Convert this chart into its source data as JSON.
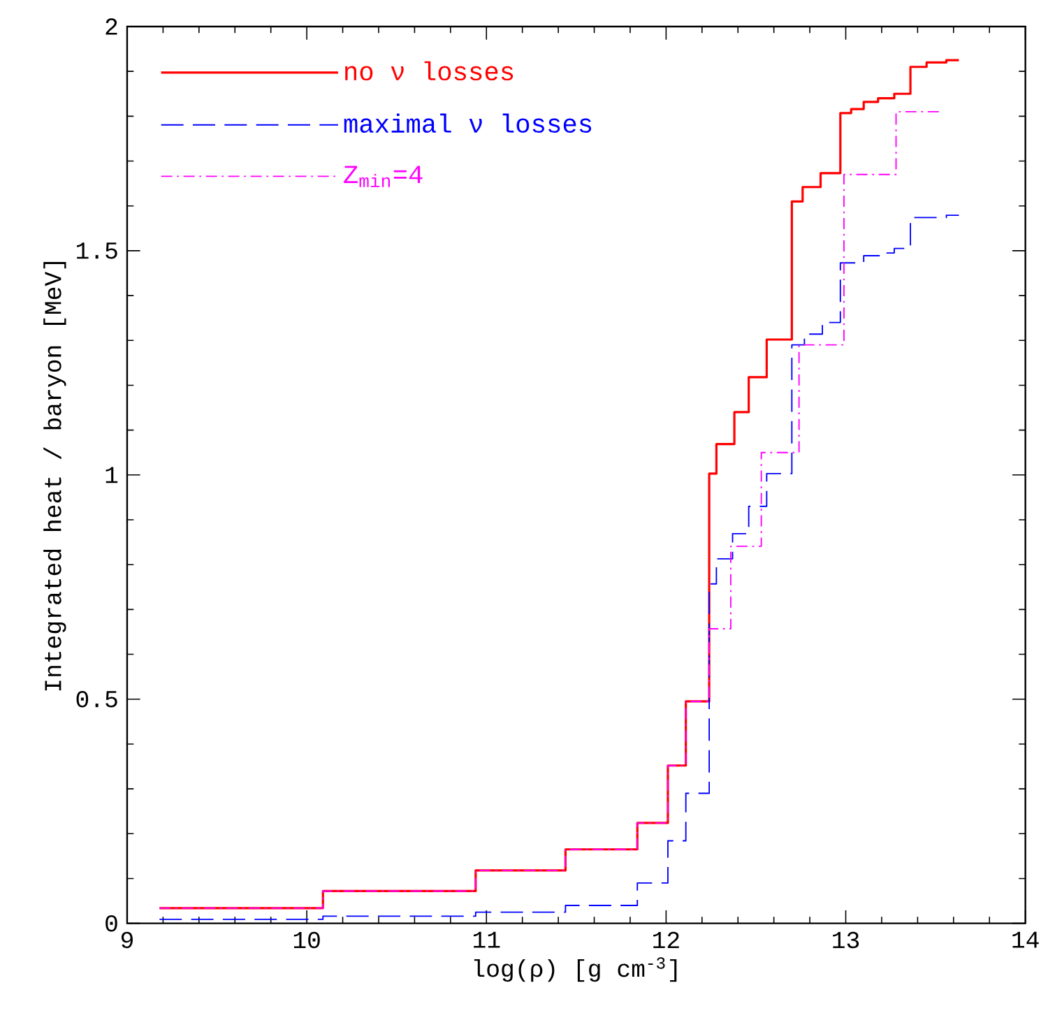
{
  "chart_data": {
    "type": "step",
    "xlabel": "log(ρ) [g cm$^{-3}$]",
    "ylabel": "Integrated heat / baryon [MeV]",
    "xlim": [
      9,
      14
    ],
    "ylim": [
      0,
      2
    ],
    "xticks": [
      9,
      10,
      11,
      12,
      13,
      14
    ],
    "yticks": [
      0,
      0.5,
      1,
      1.5,
      2
    ],
    "grid": false,
    "legend": "top left",
    "series": [
      {
        "name": "no ν losses",
        "color": "#ff0000",
        "line_style": "solid",
        "x": [
          9.18,
          10.09,
          10.94,
          11.44,
          11.84,
          12.01,
          12.11,
          12.24,
          12.28,
          12.38,
          12.46,
          12.56,
          12.7,
          12.76,
          12.86,
          12.97,
          13.03,
          13.1,
          13.18,
          13.27,
          13.36,
          13.45,
          13.56,
          13.63
        ],
        "values": [
          0.034,
          0.072,
          0.118,
          0.165,
          0.224,
          0.352,
          0.495,
          1.003,
          1.069,
          1.14,
          1.218,
          1.302,
          1.61,
          1.642,
          1.673,
          1.807,
          1.816,
          1.832,
          1.84,
          1.85,
          1.91,
          1.92,
          1.925,
          1.925
        ]
      },
      {
        "name": "maximal ν losses",
        "color": "#0000ff",
        "line_style": "dashed",
        "x": [
          9.18,
          10.09,
          10.94,
          11.44,
          11.84,
          12.01,
          12.11,
          12.24,
          12.28,
          12.37,
          12.46,
          12.56,
          12.7,
          12.77,
          12.87,
          12.97,
          13.1,
          13.23,
          13.27,
          13.36,
          13.56,
          13.63
        ],
        "values": [
          0.009,
          0.016,
          0.025,
          0.04,
          0.09,
          0.184,
          0.29,
          0.757,
          0.813,
          0.869,
          0.93,
          1.003,
          1.29,
          1.314,
          1.34,
          1.473,
          1.489,
          1.495,
          1.505,
          1.574,
          1.579,
          1.579
        ]
      },
      {
        "name": "Z$_{min}$=4",
        "color": "#ff00ff",
        "line_style": "dashdot",
        "x": [
          9.18,
          10.09,
          10.94,
          11.44,
          11.84,
          12.01,
          12.11,
          12.24,
          12.36,
          12.53,
          12.74,
          12.99,
          13.28,
          13.52
        ],
        "values": [
          0.034,
          0.072,
          0.118,
          0.165,
          0.224,
          0.352,
          0.495,
          0.657,
          0.841,
          1.05,
          1.29,
          1.67,
          1.81,
          1.81
        ]
      }
    ]
  }
}
